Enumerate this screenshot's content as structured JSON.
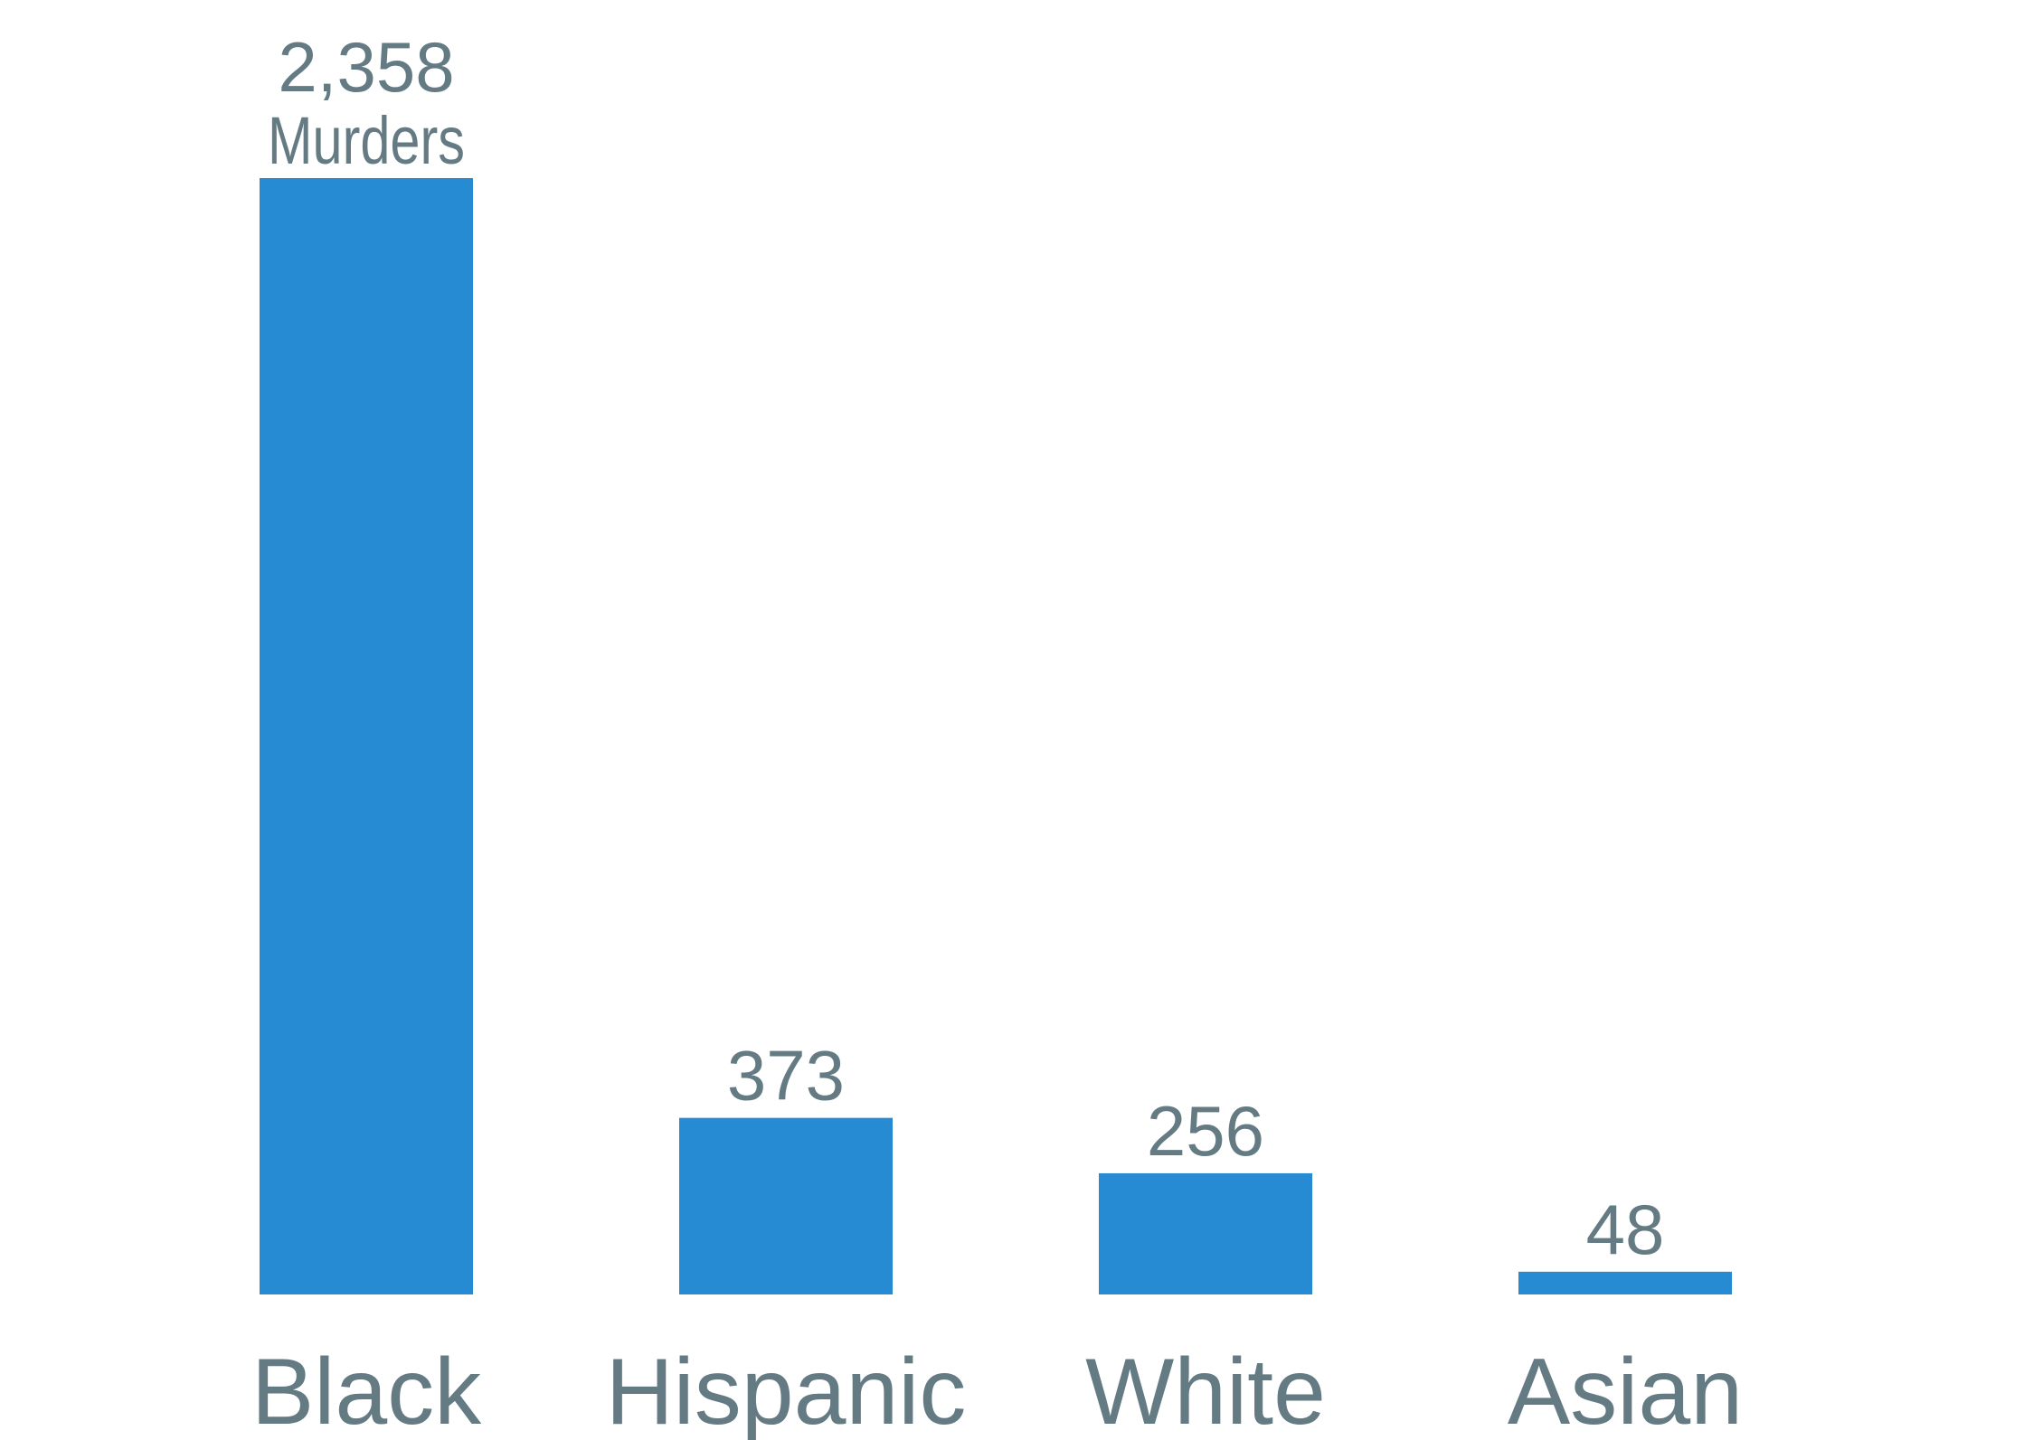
{
  "chart_data": {
    "type": "bar",
    "categories": [
      "Black",
      "Hispanic",
      "White",
      "Asian"
    ],
    "values": [
      2358,
      373,
      256,
      48
    ],
    "value_labels": [
      "2,358",
      "373",
      "256",
      "48"
    ],
    "first_value_unit": "Murders",
    "title": "",
    "xlabel": "",
    "ylabel": "",
    "ylim": [
      0,
      2358
    ],
    "grid": false,
    "legend": "none",
    "colors": {
      "bar": "#268bd2",
      "text": "#657b83",
      "background": "#ffffff"
    }
  }
}
